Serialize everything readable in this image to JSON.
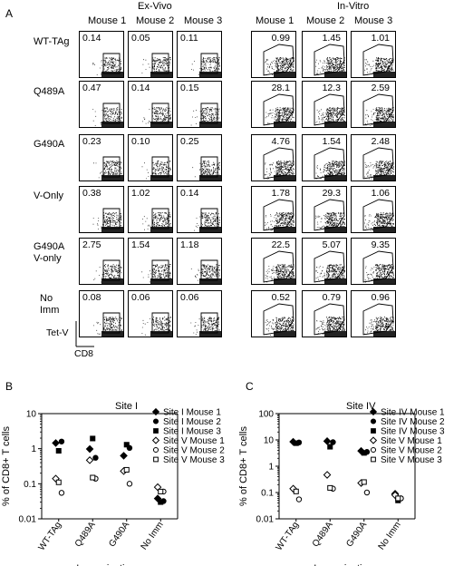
{
  "panel_a": {
    "label": "A",
    "group_exvivo": "Ex-Vivo",
    "group_invitro": "In-Vitro",
    "mouse_headers": [
      "Mouse 1",
      "Mouse 2",
      "Mouse 3"
    ],
    "rows": [
      {
        "label": "WT-TAg",
        "exvivo": [
          "0.14",
          "0.05",
          "0.11"
        ],
        "invitro": [
          "0.99",
          "1.45",
          "1.01"
        ]
      },
      {
        "label": "Q489A",
        "exvivo": [
          "0.47",
          "0.14",
          "0.15"
        ],
        "invitro": [
          "28.1",
          "12.3",
          "2.59"
        ]
      },
      {
        "label": "G490A",
        "exvivo": [
          "0.23",
          "0.10",
          "0.25"
        ],
        "invitro": [
          "4.76",
          "1.54",
          "2.48"
        ]
      },
      {
        "label": "V-Only",
        "exvivo": [
          "0.38",
          "1.02",
          "0.14"
        ],
        "invitro": [
          "1.78",
          "29.3",
          "1.06"
        ]
      },
      {
        "label": "G490A\nV-only",
        "exvivo": [
          "2.75",
          "1.54",
          "1.18"
        ],
        "invitro": [
          "22.5",
          "5.07",
          "9.35"
        ]
      },
      {
        "label": "No\nImm",
        "exvivo": [
          "0.08",
          "0.06",
          "0.06"
        ],
        "invitro": [
          "0.52",
          "0.79",
          "0.96"
        ]
      }
    ],
    "y_axis_label": "Tet-V",
    "x_axis_label": "CD8"
  },
  "chart_data": [
    {
      "panel": "B",
      "type": "scatter",
      "title": "Site I",
      "xlabel": "Immunization",
      "ylabel": "% of CD8+ T cells",
      "yscale": "log",
      "ylim": [
        0.01,
        10
      ],
      "yticks": [
        "0.01",
        "0.1",
        "1",
        "10"
      ],
      "categories": [
        "WT-TAg",
        "Q489A",
        "G490A",
        "No Imm"
      ],
      "legend_position": "top-right",
      "series": [
        {
          "name": "Site I Mouse 1",
          "marker": "diamond-filled",
          "values": [
            1.45,
            0.98,
            0.63,
            0.038
          ]
        },
        {
          "name": "Site I Mouse 2",
          "marker": "circle-filled",
          "values": [
            1.6,
            0.55,
            1.05,
            0.032
          ]
        },
        {
          "name": "Site I Mouse 3",
          "marker": "square-filled",
          "values": [
            0.87,
            1.95,
            1.3,
            0.03
          ]
        },
        {
          "name": "Site V Mouse 1",
          "marker": "diamond-open",
          "values": [
            0.14,
            0.47,
            0.23,
            0.08
          ]
        },
        {
          "name": "Site V Mouse 2",
          "marker": "circle-open",
          "values": [
            0.055,
            0.14,
            0.1,
            0.06
          ]
        },
        {
          "name": "Site V Mouse 3",
          "marker": "square-open",
          "values": [
            0.11,
            0.15,
            0.25,
            0.06
          ]
        }
      ]
    },
    {
      "panel": "C",
      "type": "scatter",
      "title": "Site IV",
      "xlabel": "Immunization",
      "ylabel": "% of CD8+ T cells",
      "yscale": "log",
      "ylim": [
        0.01,
        100
      ],
      "yticks": [
        "0.01",
        "0.1",
        "1",
        "10",
        "100"
      ],
      "categories": [
        "WT-TAg",
        "Q489A",
        "G490A",
        "No Imm"
      ],
      "legend_position": "top-right",
      "series": [
        {
          "name": "Site IV Mouse 1",
          "marker": "diamond-filled",
          "values": [
            8.5,
            9.0,
            3.8,
            0.09
          ]
        },
        {
          "name": "Site IV Mouse 2",
          "marker": "circle-filled",
          "values": [
            8.0,
            8.2,
            3.5,
            0.06
          ]
        },
        {
          "name": "Site IV Mouse 3",
          "marker": "square-filled",
          "values": [
            7.5,
            5.5,
            3.2,
            0.05
          ]
        },
        {
          "name": "Site V Mouse 1",
          "marker": "diamond-open",
          "values": [
            0.14,
            0.47,
            0.23,
            0.08
          ]
        },
        {
          "name": "Site V Mouse 2",
          "marker": "circle-open",
          "values": [
            0.055,
            0.14,
            0.1,
            0.06
          ]
        },
        {
          "name": "Site V Mouse 3",
          "marker": "square-open",
          "values": [
            0.11,
            0.15,
            0.25,
            0.06
          ]
        }
      ]
    }
  ]
}
